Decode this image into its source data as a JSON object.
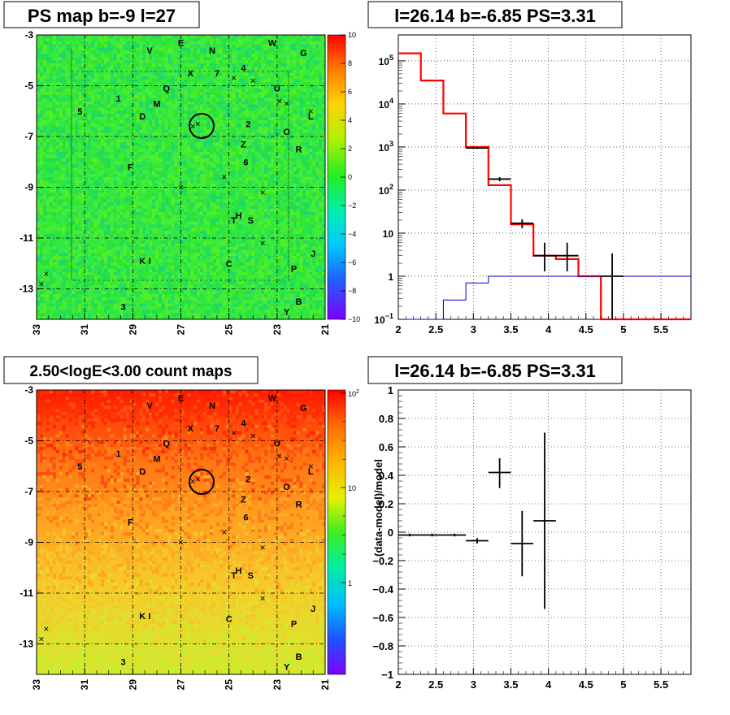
{
  "letters": [
    "V",
    "E",
    "N",
    "W",
    "G",
    "X",
    "7",
    "4",
    "Q",
    "U",
    "1",
    "M",
    "5",
    "D",
    "2",
    "L",
    "O",
    "Z",
    "R",
    "6",
    "F",
    "T",
    "H",
    "S",
    "K",
    "I",
    "C",
    "J",
    "P",
    "3",
    "Y",
    "B"
  ],
  "marker_labels": [
    "×"
  ],
  "colors": {
    "frame": "#000000",
    "ps_map_base": "#33e633",
    "count_map_top": "#ff1a00",
    "count_map_bottom": "#d8ea2a",
    "model_line": "#ff0000",
    "tail_line": "#0000cc",
    "data_marks": "#000000"
  },
  "chart_data": [
    {
      "type": "heatmap",
      "title": "PS map b=-9 l=27",
      "x_ticks": [
        "33",
        "31",
        "29",
        "27",
        "25",
        "23",
        "21"
      ],
      "y_ticks": [
        "-3",
        "-5",
        "-7",
        "-9",
        "-11",
        "-13"
      ],
      "xlim": [
        33,
        21
      ],
      "ylim": [
        -14.2,
        -3
      ],
      "colorbar": {
        "ticks": [
          "10",
          "8",
          "6",
          "4",
          "2",
          "0",
          "−2",
          "−4",
          "−6",
          "−8",
          "−10"
        ],
        "range": [
          -10,
          10
        ]
      },
      "grid": true,
      "circle_center": [
        26.14,
        -6.85
      ]
    },
    {
      "type": "line",
      "title": "l=26.14 b=-6.85 PS=3.31",
      "x_ticks": [
        "2",
        "2.5",
        "3",
        "3.5",
        "4",
        "4.5",
        "5",
        "5.5"
      ],
      "xlim": [
        2,
        5.9
      ],
      "y_scale": "log",
      "ylim": [
        0.1,
        400000
      ],
      "y_ticks": [
        {
          "base": "10",
          "exp": "5"
        },
        {
          "base": "10",
          "exp": "4"
        },
        {
          "base": "10",
          "exp": "3"
        },
        {
          "base": "10",
          "exp": "2"
        },
        {
          "base": "10",
          "exp": ""
        },
        {
          "base": "1",
          "exp": ""
        },
        {
          "base": "10",
          "exp": "−1"
        }
      ],
      "grid": true,
      "series": [
        {
          "style": "step",
          "color": "red",
          "edges": [
            2.0,
            2.3,
            2.6,
            2.9,
            3.2,
            3.5,
            3.8,
            4.1,
            4.4,
            4.7,
            5.0,
            5.3,
            5.6,
            5.9
          ],
          "values": [
            150000,
            35000,
            6000,
            1000,
            130,
            16,
            3,
            2.5,
            1,
            0.1,
            0.1,
            0.1,
            0.1
          ]
        },
        {
          "style": "step",
          "color": "blue",
          "edges": [
            2.0,
            2.3,
            2.6,
            2.9,
            3.2,
            3.5,
            3.8,
            4.1,
            4.4,
            4.7,
            5.0,
            5.3,
            5.6,
            5.9
          ],
          "values": [
            0.1,
            0.1,
            0.28,
            0.7,
            1.0,
            1.0,
            1.0,
            1.0,
            1.0,
            1.0,
            1.0,
            1.0,
            1.0
          ]
        },
        {
          "style": "points",
          "color": "black",
          "points": [
            {
              "x": 3.05,
              "xerr": 0.15,
              "y": 950,
              "ylo": 900,
              "yhi": 1000
            },
            {
              "x": 3.35,
              "xerr": 0.15,
              "y": 180,
              "ylo": 160,
              "yhi": 200
            },
            {
              "x": 3.65,
              "xerr": 0.15,
              "y": 17,
              "ylo": 13,
              "yhi": 21
            },
            {
              "x": 3.95,
              "xerr": 0.15,
              "y": 3,
              "ylo": 1.3,
              "yhi": 6
            },
            {
              "x": 4.25,
              "xerr": 0.15,
              "y": 3,
              "ylo": 1.3,
              "yhi": 6
            },
            {
              "x": 4.85,
              "xerr": 0.15,
              "y": 1,
              "ylo": 0.1,
              "yhi": 3.4
            }
          ]
        }
      ]
    },
    {
      "type": "heatmap",
      "title": "2.50<logE<3.00 count maps",
      "x_ticks": [
        "33",
        "31",
        "29",
        "27",
        "25",
        "23",
        "21"
      ],
      "y_ticks": [
        "-3",
        "-5",
        "-7",
        "-9",
        "-11",
        "-13"
      ],
      "xlim": [
        33,
        21
      ],
      "ylim": [
        -14.2,
        -3
      ],
      "colorbar": {
        "ticks": [
          {
            "base": "10",
            "exp": "2"
          },
          {
            "base": "10",
            "exp": ""
          },
          {
            "base": "1",
            "exp": ""
          }
        ],
        "scale": "log"
      },
      "grid": true,
      "circle_center": [
        26.14,
        -6.85
      ]
    },
    {
      "type": "scatter",
      "title": "l=26.14 b=-6.85 PS=3.31",
      "ylabel": "(data-model)/model",
      "x_ticks": [
        "2",
        "2.5",
        "3",
        "3.5",
        "4",
        "4.5",
        "5",
        "5.5"
      ],
      "xlim": [
        2,
        5.9
      ],
      "y_ticks": [
        "1",
        "0.8",
        "0.6",
        "0.4",
        "0.2",
        "0",
        "−0.2",
        "−0.4",
        "−0.6",
        "−0.8",
        "−1"
      ],
      "ylim": [
        -1,
        1
      ],
      "grid": true,
      "points": [
        {
          "x": 2.15,
          "xerr": 0.15,
          "y": -0.02,
          "ylo": -0.03,
          "yhi": -0.01
        },
        {
          "x": 2.45,
          "xerr": 0.15,
          "y": -0.02,
          "ylo": -0.03,
          "yhi": -0.01
        },
        {
          "x": 2.75,
          "xerr": 0.15,
          "y": -0.02,
          "ylo": -0.03,
          "yhi": -0.01
        },
        {
          "x": 3.05,
          "xerr": 0.15,
          "y": -0.06,
          "ylo": -0.08,
          "yhi": -0.04
        },
        {
          "x": 3.35,
          "xerr": 0.15,
          "y": 0.42,
          "ylo": 0.31,
          "yhi": 0.52
        },
        {
          "x": 3.65,
          "xerr": 0.15,
          "y": -0.08,
          "ylo": -0.31,
          "yhi": 0.15
        },
        {
          "x": 3.95,
          "xerr": 0.15,
          "y": 0.08,
          "ylo": -0.54,
          "yhi": 0.7
        }
      ]
    }
  ]
}
